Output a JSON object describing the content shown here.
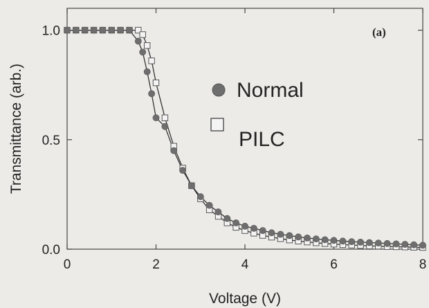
{
  "chart_data": {
    "type": "scatter",
    "panel_label": "(a)",
    "xlabel": "Voltage (V)",
    "ylabel": "Transmittance (arb.)",
    "xlim": [
      0,
      8
    ],
    "ylim": [
      0,
      1.1
    ],
    "x_ticks": [
      0,
      2,
      4,
      6,
      8
    ],
    "y_ticks": [
      0.0,
      0.5,
      1.0
    ],
    "x_tick_labels": [
      "0",
      "2",
      "4",
      "6",
      "8"
    ],
    "y_tick_labels": [
      "0.0",
      "0.5",
      "1.0"
    ],
    "grid": false,
    "legend_position": "center",
    "series": [
      {
        "name": "Normal",
        "marker": "filled-circle",
        "color": "#6e6e6e",
        "x": [
          0,
          0.2,
          0.4,
          0.6,
          0.8,
          1.0,
          1.2,
          1.4,
          1.6,
          1.7,
          1.8,
          1.9,
          2.0,
          2.2,
          2.4,
          2.6,
          2.8,
          3.0,
          3.2,
          3.4,
          3.6,
          3.8,
          4.0,
          4.2,
          4.4,
          4.6,
          4.8,
          5.0,
          5.2,
          5.4,
          5.6,
          5.8,
          6.0,
          6.2,
          6.4,
          6.6,
          6.8,
          7.0,
          7.2,
          7.4,
          7.6,
          7.8,
          8.0
        ],
        "y": [
          1.0,
          1.0,
          1.0,
          1.0,
          1.0,
          1.0,
          1.0,
          1.0,
          0.95,
          0.9,
          0.81,
          0.71,
          0.6,
          0.56,
          0.45,
          0.36,
          0.29,
          0.24,
          0.2,
          0.17,
          0.14,
          0.12,
          0.105,
          0.095,
          0.085,
          0.075,
          0.068,
          0.062,
          0.056,
          0.051,
          0.047,
          0.043,
          0.04,
          0.037,
          0.034,
          0.032,
          0.03,
          0.028,
          0.026,
          0.024,
          0.022,
          0.02,
          0.018
        ]
      },
      {
        "name": "PILC",
        "marker": "open-square",
        "color": "#555555",
        "x": [
          0,
          0.2,
          0.4,
          0.6,
          0.8,
          1.0,
          1.2,
          1.4,
          1.6,
          1.7,
          1.8,
          1.9,
          2.0,
          2.2,
          2.4,
          2.6,
          2.8,
          3.0,
          3.2,
          3.4,
          3.6,
          3.8,
          4.0,
          4.2,
          4.4,
          4.6,
          4.8,
          5.0,
          5.2,
          5.4,
          5.6,
          5.8,
          6.0,
          6.2,
          6.4,
          6.6,
          6.8,
          7.0,
          7.2,
          7.4,
          7.6,
          7.8,
          8.0
        ],
        "y": [
          1.0,
          1.0,
          1.0,
          1.0,
          1.0,
          1.0,
          1.0,
          1.0,
          1.0,
          0.98,
          0.93,
          0.86,
          0.76,
          0.6,
          0.47,
          0.37,
          0.29,
          0.23,
          0.18,
          0.15,
          0.12,
          0.1,
          0.085,
          0.073,
          0.063,
          0.055,
          0.048,
          0.042,
          0.037,
          0.033,
          0.029,
          0.026,
          0.023,
          0.021,
          0.019,
          0.017,
          0.015,
          0.014,
          0.012,
          0.011,
          0.01,
          0.009,
          0.008
        ]
      }
    ]
  }
}
